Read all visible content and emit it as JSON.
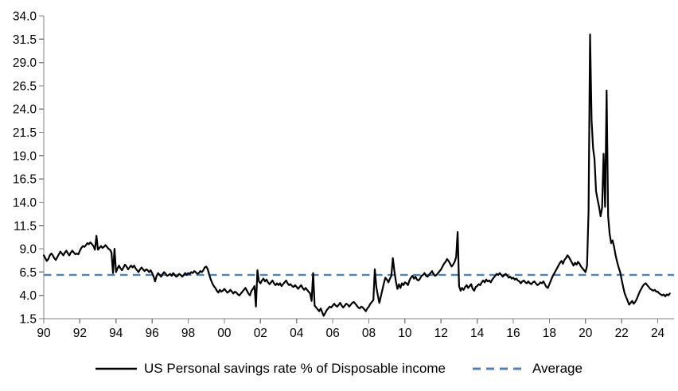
{
  "chart": {
    "legend": [
      {
        "label": "US Personal savings rate % of Disposable income",
        "color": "#000000",
        "style": "solid"
      },
      {
        "label": "Average",
        "color": "#4F81BD",
        "style": "dashed"
      }
    ],
    "colors": {
      "axis": "#808080",
      "series": "#000000",
      "average": "#4F81BD",
      "background": "#ffffff"
    }
  },
  "chart_data": {
    "type": "line",
    "title": "",
    "xlabel": "",
    "ylabel": "",
    "grid": false,
    "legend_position": "bottom",
    "ylim": [
      1.5,
      34.0
    ],
    "xlim": [
      1990,
      2024.9
    ],
    "y_ticks": [
      1.5,
      4.0,
      6.5,
      9.0,
      11.5,
      14.0,
      16.5,
      19.0,
      21.5,
      24.0,
      26.5,
      29.0,
      31.5,
      34.0
    ],
    "y_tick_labels": [
      "1.5",
      "4.0",
      "6.5",
      "9.0",
      "11.5",
      "14.0",
      "16.5",
      "19.0",
      "21.5",
      "24.0",
      "26.5",
      "29.0",
      "31.5",
      "34.0"
    ],
    "x_tick_years": [
      1990,
      1992,
      1994,
      1996,
      1998,
      2000,
      2002,
      2004,
      2006,
      2008,
      2010,
      2012,
      2014,
      2016,
      2018,
      2020,
      2022,
      2024
    ],
    "x_tick_labels": [
      "90",
      "92",
      "94",
      "96",
      "98",
      "00",
      "02",
      "04",
      "06",
      "08",
      "10",
      "12",
      "14",
      "16",
      "18",
      "20",
      "22",
      "24"
    ],
    "series": [
      {
        "name": "US Personal savings rate % of Disposable income",
        "color": "#000000",
        "line_width": 2.2,
        "x_start": 1990.0,
        "x_step": 0.0833333,
        "values": [
          8.3,
          8.0,
          7.7,
          7.9,
          8.3,
          8.5,
          8.3,
          8.0,
          7.8,
          8.1,
          8.4,
          8.7,
          8.5,
          8.3,
          8.6,
          8.8,
          8.5,
          8.3,
          8.6,
          8.8,
          8.6,
          8.4,
          8.5,
          8.4,
          8.8,
          9.1,
          9.3,
          9.2,
          9.4,
          9.6,
          9.5,
          9.7,
          9.5,
          9.3,
          8.9,
          10.4,
          8.9,
          9.1,
          9.3,
          9.1,
          9.2,
          9.4,
          9.2,
          9.0,
          8.9,
          8.6,
          6.4,
          9.0,
          6.5,
          6.9,
          7.2,
          6.9,
          6.7,
          7.0,
          7.3,
          7.1,
          6.8,
          7.0,
          7.2,
          7.0,
          7.2,
          6.9,
          6.7,
          6.5,
          6.8,
          7.0,
          6.8,
          6.6,
          6.8,
          6.7,
          6.5,
          6.7,
          6.4,
          6.0,
          5.5,
          6.1,
          6.4,
          6.2,
          6.0,
          6.3,
          6.5,
          6.3,
          6.1,
          6.2,
          6.3,
          6.1,
          6.4,
          6.2,
          6.0,
          6.1,
          6.3,
          6.2,
          6.0,
          6.2,
          6.4,
          6.2,
          6.4,
          6.3,
          6.5,
          6.4,
          6.6,
          6.5,
          6.3,
          6.4,
          6.6,
          6.5,
          6.7,
          7.0,
          7.1,
          6.8,
          6.2,
          5.7,
          5.3,
          5.0,
          4.8,
          4.5,
          4.3,
          4.6,
          4.4,
          4.5,
          4.7,
          4.5,
          4.3,
          4.4,
          4.6,
          4.4,
          4.2,
          4.4,
          4.3,
          4.1,
          4.0,
          4.2,
          4.4,
          4.6,
          4.8,
          4.5,
          4.2,
          4.0,
          4.5,
          4.7,
          5.0,
          2.8,
          6.7,
          5.5,
          5.3,
          5.6,
          5.8,
          5.5,
          5.7,
          5.4,
          5.2,
          5.4,
          5.6,
          5.3,
          5.1,
          5.3,
          5.1,
          5.3,
          5.0,
          5.2,
          5.4,
          5.6,
          5.3,
          5.1,
          5.2,
          5.0,
          4.9,
          5.1,
          4.9,
          4.7,
          4.9,
          5.1,
          4.8,
          4.6,
          4.8,
          4.6,
          4.4,
          4.2,
          3.4,
          6.4,
          2.9,
          2.7,
          2.5,
          2.3,
          2.6,
          2.2,
          1.8,
          2.1,
          2.4,
          2.6,
          2.8,
          2.7,
          2.9,
          3.1,
          2.9,
          2.8,
          3.0,
          3.2,
          2.9,
          2.7,
          2.9,
          3.1,
          3.0,
          2.8,
          3.0,
          3.2,
          3.3,
          3.1,
          2.9,
          2.7,
          2.6,
          2.8,
          2.7,
          2.5,
          2.3,
          2.6,
          2.8,
          3.1,
          3.3,
          3.5,
          6.8,
          4.9,
          4.0,
          3.2,
          3.9,
          4.6,
          5.3,
          5.9,
          5.7,
          5.4,
          5.8,
          6.1,
          8.0,
          6.6,
          5.5,
          4.7,
          5.2,
          4.8,
          5.3,
          5.1,
          5.4,
          5.3,
          5.1,
          5.6,
          5.9,
          6.1,
          5.8,
          6.0,
          5.7,
          5.6,
          5.8,
          6.1,
          6.2,
          6.4,
          6.1,
          6.0,
          6.2,
          6.4,
          6.6,
          6.3,
          6.1,
          6.2,
          6.4,
          6.6,
          6.8,
          7.1,
          7.4,
          7.6,
          7.9,
          7.7,
          7.4,
          7.1,
          7.3,
          7.6,
          8.1,
          10.8,
          5.0,
          4.5,
          4.8,
          4.6,
          4.9,
          5.1,
          4.8,
          5.0,
          5.2,
          4.7,
          4.5,
          4.9,
          5.0,
          5.2,
          5.1,
          5.4,
          5.6,
          5.4,
          5.7,
          5.5,
          5.6,
          5.4,
          5.7,
          5.9,
          6.1,
          6.3,
          6.2,
          6.4,
          6.2,
          6.0,
          6.2,
          6.3,
          6.1,
          5.9,
          6.0,
          5.8,
          5.9,
          5.7,
          5.8,
          5.6,
          5.5,
          5.3,
          5.5,
          5.6,
          5.4,
          5.3,
          5.5,
          5.3,
          5.2,
          5.4,
          5.5,
          5.3,
          5.1,
          5.2,
          5.4,
          5.3,
          5.5,
          5.2,
          4.9,
          4.8,
          5.2,
          5.6,
          6.0,
          6.3,
          6.6,
          6.9,
          7.2,
          7.5,
          7.7,
          7.4,
          7.8,
          8.0,
          8.3,
          8.1,
          7.8,
          7.5,
          7.2,
          7.5,
          7.3,
          7.6,
          7.4,
          7.1,
          6.9,
          6.7,
          6.5,
          7.2,
          13.0,
          32.0,
          22.8,
          19.8,
          18.6,
          15.2,
          14.3,
          13.5,
          12.5,
          13.4,
          19.2,
          13.5,
          26.0,
          12.5,
          10.6,
          9.6,
          9.9,
          9.2,
          8.3,
          7.6,
          7.0,
          6.5,
          5.7,
          4.9,
          4.2,
          3.8,
          3.4,
          3.0,
          3.2,
          3.4,
          3.1,
          3.3,
          3.6,
          4.0,
          4.4,
          4.7,
          5.0,
          5.2,
          5.3,
          5.1,
          4.9,
          4.7,
          4.6,
          4.5,
          4.6,
          4.4,
          4.4,
          4.2,
          4.1,
          4.0,
          4.1,
          3.9,
          4.1,
          4.0,
          4.2
        ]
      },
      {
        "name": "Average",
        "color": "#4F81BD",
        "style": "dashed",
        "line_width": 2.4,
        "value": 6.2
      }
    ]
  }
}
